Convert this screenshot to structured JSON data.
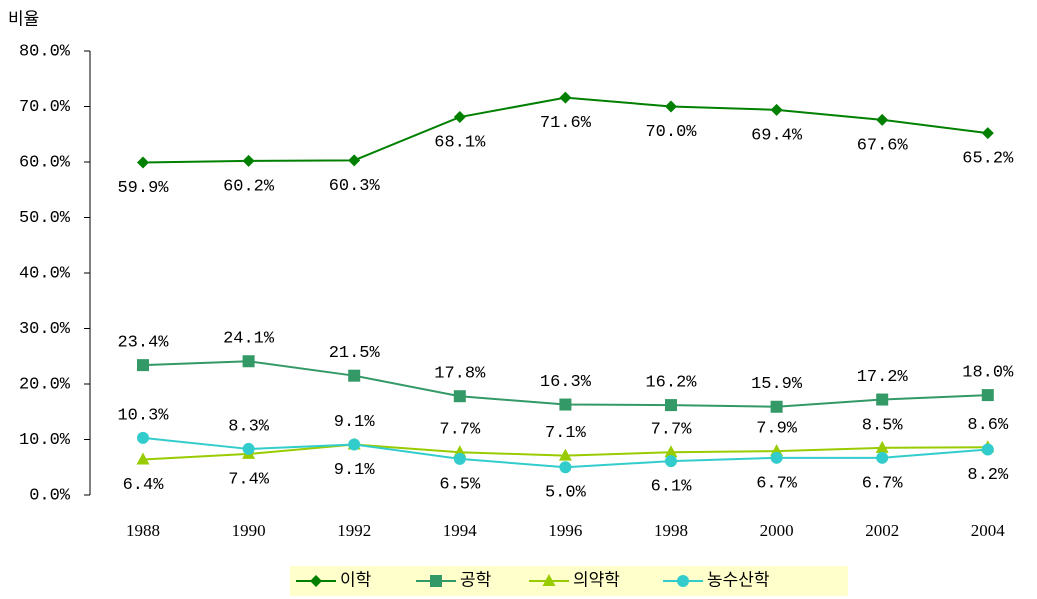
{
  "chart_data": {
    "type": "line",
    "y_label": "비율",
    "categories": [
      "1988",
      "1990",
      "1992",
      "1994",
      "1996",
      "1998",
      "2000",
      "2002",
      "2004"
    ],
    "series": [
      {
        "name": "이학",
        "color": "#008000",
        "values": [
          59.9,
          60.2,
          60.3,
          68.1,
          71.6,
          70.0,
          69.4,
          67.6,
          65.2
        ],
        "value_labels": [
          "59.9%",
          "60.2%",
          "60.3%",
          "68.1%",
          "71.6%",
          "70.0%",
          "69.4%",
          "67.6%",
          "65.2%"
        ]
      },
      {
        "name": "공학",
        "color": "#339966",
        "values": [
          23.4,
          24.1,
          21.5,
          17.8,
          16.3,
          16.2,
          15.9,
          17.2,
          18.0
        ],
        "value_labels": [
          "23.4%",
          "24.1%",
          "21.5%",
          "17.8%",
          "16.3%",
          "16.2%",
          "15.9%",
          "17.2%",
          "18.0%"
        ]
      },
      {
        "name": "의약학",
        "color": "#99cc00",
        "values": [
          6.4,
          7.4,
          9.1,
          7.7,
          7.1,
          7.7,
          7.9,
          8.5,
          8.6
        ],
        "value_labels": [
          "6.4%",
          "7.4%",
          "9.1%",
          "7.7%",
          "7.1%",
          "7.7%",
          "7.9%",
          "8.5%",
          "8.6%"
        ]
      },
      {
        "name": "농수산학",
        "color": "#33cccc",
        "values": [
          10.3,
          8.3,
          9.1,
          6.5,
          5.0,
          6.1,
          6.7,
          6.7,
          8.2
        ],
        "value_labels": [
          "10.3%",
          "8.3%",
          "9.1%",
          "6.5%",
          "5.0%",
          "6.1%",
          "6.7%",
          "6.7%",
          "8.2%"
        ]
      }
    ],
    "ylim": [
      0,
      80
    ],
    "yticks": [
      {
        "value": 0,
        "label": "0.0%"
      },
      {
        "value": 10,
        "label": "10.0%"
      },
      {
        "value": 20,
        "label": "20.0%"
      },
      {
        "value": 30,
        "label": "30.0%"
      },
      {
        "value": 40,
        "label": "40.0%"
      },
      {
        "value": 50,
        "label": "50.0%"
      },
      {
        "value": 60,
        "label": "60.0%"
      },
      {
        "value": 70,
        "label": "70.0%"
      },
      {
        "value": 80,
        "label": "80.0%"
      }
    ],
    "legend": "bottom"
  }
}
